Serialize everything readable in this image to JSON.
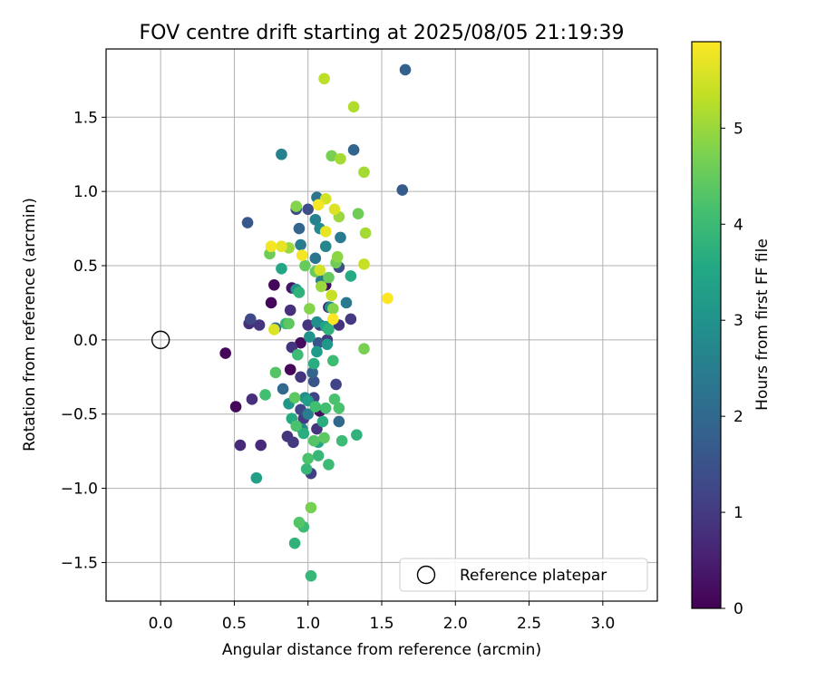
{
  "chart_data": {
    "type": "scatter",
    "title": "FOV centre drift starting at 2025/08/05 21:19:39",
    "xlabel": "Angular distance from reference (arcmin)",
    "ylabel": "Rotation from reference (arcmin)",
    "xlim": [
      -0.37,
      3.37
    ],
    "ylim": [
      -1.76,
      1.96
    ],
    "xticks": [
      0.0,
      0.5,
      1.0,
      1.5,
      2.0,
      2.5,
      3.0
    ],
    "xtick_labels": [
      "0.0",
      "0.5",
      "1.0",
      "1.5",
      "2.0",
      "2.5",
      "3.0"
    ],
    "yticks": [
      -1.5,
      -1.0,
      -0.5,
      0.0,
      0.5,
      1.0,
      1.5
    ],
    "ytick_labels": [
      "−1.5",
      "−1.0",
      "−0.5",
      "0.0",
      "0.5",
      "1.0",
      "1.5"
    ],
    "grid": true,
    "legend": {
      "placement": "lower-right",
      "entries": [
        "Reference platepar"
      ]
    },
    "reference": {
      "x": 0.0,
      "y": 0.0,
      "label": "Reference platepar"
    },
    "colorbar": {
      "label": "Hours from first FF file",
      "colormap": "viridis",
      "range": [
        0,
        5.9
      ],
      "ticks": [
        0,
        1,
        2,
        3,
        4,
        5
      ],
      "tick_labels": [
        "0",
        "1",
        "2",
        "3",
        "4",
        "5"
      ]
    },
    "points": [
      {
        "x": 0.44,
        "y": -0.09,
        "h": 0.1
      },
      {
        "x": 0.51,
        "y": -0.45,
        "h": 0.1
      },
      {
        "x": 0.75,
        "y": 0.25,
        "h": 0.1
      },
      {
        "x": 0.77,
        "y": 0.37,
        "h": 0.1
      },
      {
        "x": 0.88,
        "y": -0.2,
        "h": 0.1
      },
      {
        "x": 0.95,
        "y": -0.02,
        "h": 0.2
      },
      {
        "x": 1.08,
        "y": -0.48,
        "h": 0.2
      },
      {
        "x": 1.12,
        "y": 0.37,
        "h": 0.2
      },
      {
        "x": 0.89,
        "y": 0.35,
        "h": 0.3
      },
      {
        "x": 1.14,
        "y": 0.22,
        "h": 0.3
      },
      {
        "x": 0.54,
        "y": -0.71,
        "h": 0.7
      },
      {
        "x": 0.68,
        "y": -0.71,
        "h": 0.7
      },
      {
        "x": 0.62,
        "y": -0.4,
        "h": 0.8
      },
      {
        "x": 0.6,
        "y": 0.11,
        "h": 0.8
      },
      {
        "x": 0.67,
        "y": 0.1,
        "h": 0.9
      },
      {
        "x": 0.89,
        "y": -0.05,
        "h": 0.9
      },
      {
        "x": 0.86,
        "y": -0.65,
        "h": 0.9
      },
      {
        "x": 0.88,
        "y": 0.2,
        "h": 0.8
      },
      {
        "x": 0.95,
        "y": -0.25,
        "h": 0.9
      },
      {
        "x": 1.0,
        "y": 0.1,
        "h": 0.9
      },
      {
        "x": 1.06,
        "y": -0.6,
        "h": 0.9
      },
      {
        "x": 1.21,
        "y": 0.1,
        "h": 0.9
      },
      {
        "x": 1.29,
        "y": 0.14,
        "h": 1.0
      },
      {
        "x": 0.9,
        "y": -0.69,
        "h": 1.0
      },
      {
        "x": 0.97,
        "y": -0.53,
        "h": 1.0
      },
      {
        "x": 1.13,
        "y": 0.0,
        "h": 1.0
      },
      {
        "x": 1.08,
        "y": 0.1,
        "h": 1.1
      },
      {
        "x": 1.02,
        "y": -0.9,
        "h": 1.1
      },
      {
        "x": 1.19,
        "y": -0.3,
        "h": 1.2
      },
      {
        "x": 1.04,
        "y": -0.39,
        "h": 1.2
      },
      {
        "x": 0.95,
        "y": -0.47,
        "h": 1.2
      },
      {
        "x": 0.61,
        "y": 0.14,
        "h": 1.3
      },
      {
        "x": 0.92,
        "y": 0.88,
        "h": 1.3
      },
      {
        "x": 1.0,
        "y": 0.88,
        "h": 1.4
      },
      {
        "x": 1.21,
        "y": 0.49,
        "h": 1.4
      },
      {
        "x": 1.04,
        "y": -0.28,
        "h": 1.5
      },
      {
        "x": 1.07,
        "y": -0.02,
        "h": 1.5
      },
      {
        "x": 0.59,
        "y": 0.79,
        "h": 1.6
      },
      {
        "x": 1.64,
        "y": 1.01,
        "h": 1.7
      },
      {
        "x": 1.66,
        "y": 1.82,
        "h": 1.8
      },
      {
        "x": 1.31,
        "y": 1.28,
        "h": 1.9
      },
      {
        "x": 0.94,
        "y": 0.75,
        "h": 1.9
      },
      {
        "x": 1.03,
        "y": -0.22,
        "h": 1.9
      },
      {
        "x": 1.21,
        "y": -0.55,
        "h": 2.0
      },
      {
        "x": 0.83,
        "y": -0.33,
        "h": 2.0
      },
      {
        "x": 0.78,
        "y": 0.08,
        "h": 2.2
      },
      {
        "x": 1.06,
        "y": 0.96,
        "h": 2.3
      },
      {
        "x": 1.05,
        "y": 0.55,
        "h": 2.3
      },
      {
        "x": 1.22,
        "y": 0.69,
        "h": 2.4
      },
      {
        "x": 1.09,
        "y": 0.4,
        "h": 2.4
      },
      {
        "x": 1.26,
        "y": 0.25,
        "h": 2.4
      },
      {
        "x": 0.95,
        "y": 0.64,
        "h": 2.5
      },
      {
        "x": 1.0,
        "y": -0.5,
        "h": 2.5
      },
      {
        "x": 0.82,
        "y": 1.25,
        "h": 2.6
      },
      {
        "x": 1.05,
        "y": 0.81,
        "h": 2.6
      },
      {
        "x": 1.12,
        "y": 0.63,
        "h": 2.7
      },
      {
        "x": 0.96,
        "y": -0.6,
        "h": 2.7
      },
      {
        "x": 1.08,
        "y": 0.75,
        "h": 2.8
      },
      {
        "x": 1.15,
        "y": 0.22,
        "h": 2.8
      },
      {
        "x": 1.06,
        "y": 0.12,
        "h": 2.9
      },
      {
        "x": 0.98,
        "y": -0.39,
        "h": 2.9
      },
      {
        "x": 0.92,
        "y": 0.34,
        "h": 3.0
      },
      {
        "x": 1.01,
        "y": 0.02,
        "h": 3.0
      },
      {
        "x": 1.13,
        "y": -0.03,
        "h": 3.1
      },
      {
        "x": 0.87,
        "y": -0.43,
        "h": 3.1
      },
      {
        "x": 1.06,
        "y": -0.08,
        "h": 3.2
      },
      {
        "x": 0.65,
        "y": -0.93,
        "h": 3.3
      },
      {
        "x": 1.0,
        "y": -0.41,
        "h": 3.3
      },
      {
        "x": 1.12,
        "y": 0.09,
        "h": 3.4
      },
      {
        "x": 0.82,
        "y": 0.48,
        "h": 3.5
      },
      {
        "x": 1.07,
        "y": -0.69,
        "h": 3.5
      },
      {
        "x": 1.29,
        "y": 0.43,
        "h": 3.6
      },
      {
        "x": 0.89,
        "y": -0.53,
        "h": 3.6
      },
      {
        "x": 0.97,
        "y": -0.63,
        "h": 3.7
      },
      {
        "x": 1.04,
        "y": -0.16,
        "h": 3.7
      },
      {
        "x": 1.1,
        "y": -0.55,
        "h": 3.7
      },
      {
        "x": 0.94,
        "y": 0.32,
        "h": 3.8
      },
      {
        "x": 1.14,
        "y": 0.07,
        "h": 3.8
      },
      {
        "x": 1.33,
        "y": -0.64,
        "h": 3.8
      },
      {
        "x": 0.91,
        "y": -1.37,
        "h": 3.8
      },
      {
        "x": 0.99,
        "y": -0.87,
        "h": 3.9
      },
      {
        "x": 1.02,
        "y": -1.59,
        "h": 3.9
      },
      {
        "x": 0.85,
        "y": 0.11,
        "h": 3.9
      },
      {
        "x": 1.07,
        "y": -0.78,
        "h": 3.9
      },
      {
        "x": 1.14,
        "y": -0.84,
        "h": 4.0
      },
      {
        "x": 0.97,
        "y": -1.26,
        "h": 4.0
      },
      {
        "x": 1.23,
        "y": -0.68,
        "h": 4.0
      },
      {
        "x": 1.17,
        "y": -0.14,
        "h": 4.0
      },
      {
        "x": 0.93,
        "y": -0.1,
        "h": 4.0
      },
      {
        "x": 0.71,
        "y": -0.37,
        "h": 4.1
      },
      {
        "x": 1.05,
        "y": -0.45,
        "h": 4.1
      },
      {
        "x": 1.12,
        "y": -0.46,
        "h": 4.1
      },
      {
        "x": 1.21,
        "y": -0.46,
        "h": 4.2
      },
      {
        "x": 1.18,
        "y": -0.4,
        "h": 4.2
      },
      {
        "x": 0.92,
        "y": -0.58,
        "h": 4.2
      },
      {
        "x": 1.0,
        "y": -0.8,
        "h": 4.2
      },
      {
        "x": 0.78,
        "y": -0.22,
        "h": 4.3
      },
      {
        "x": 0.94,
        "y": -1.23,
        "h": 4.3
      },
      {
        "x": 1.04,
        "y": -0.68,
        "h": 4.3
      },
      {
        "x": 0.91,
        "y": -0.39,
        "h": 4.4
      },
      {
        "x": 1.11,
        "y": -0.66,
        "h": 4.4
      },
      {
        "x": 0.87,
        "y": 0.11,
        "h": 4.4
      },
      {
        "x": 0.98,
        "y": 0.5,
        "h": 4.5
      },
      {
        "x": 1.14,
        "y": 0.42,
        "h": 4.5
      },
      {
        "x": 1.05,
        "y": 0.46,
        "h": 4.5
      },
      {
        "x": 1.19,
        "y": 0.52,
        "h": 4.6
      },
      {
        "x": 0.74,
        "y": 0.58,
        "h": 4.6
      },
      {
        "x": 1.34,
        "y": 0.85,
        "h": 4.6
      },
      {
        "x": 1.16,
        "y": 1.24,
        "h": 4.7
      },
      {
        "x": 1.02,
        "y": -1.13,
        "h": 4.7
      },
      {
        "x": 1.38,
        "y": -0.06,
        "h": 4.7
      },
      {
        "x": 0.92,
        "y": 0.9,
        "h": 4.8
      },
      {
        "x": 1.01,
        "y": 0.21,
        "h": 4.8
      },
      {
        "x": 1.17,
        "y": 0.21,
        "h": 4.8
      },
      {
        "x": 1.2,
        "y": 0.56,
        "h": 4.9
      },
      {
        "x": 1.09,
        "y": 0.36,
        "h": 5.0
      },
      {
        "x": 1.21,
        "y": 0.83,
        "h": 5.0
      },
      {
        "x": 0.87,
        "y": 0.62,
        "h": 5.0
      },
      {
        "x": 1.22,
        "y": 1.22,
        "h": 5.1
      },
      {
        "x": 1.38,
        "y": 1.13,
        "h": 5.1
      },
      {
        "x": 1.39,
        "y": 0.72,
        "h": 5.1
      },
      {
        "x": 1.31,
        "y": 1.57,
        "h": 5.2
      },
      {
        "x": 1.11,
        "y": 1.76,
        "h": 5.3
      },
      {
        "x": 1.38,
        "y": 0.51,
        "h": 5.4
      },
      {
        "x": 1.16,
        "y": 0.3,
        "h": 5.4
      },
      {
        "x": 1.12,
        "y": 0.95,
        "h": 5.5
      },
      {
        "x": 1.08,
        "y": 0.47,
        "h": 5.5
      },
      {
        "x": 1.18,
        "y": 0.88,
        "h": 5.6
      },
      {
        "x": 0.77,
        "y": 0.07,
        "h": 5.6
      },
      {
        "x": 0.82,
        "y": 0.63,
        "h": 5.7
      },
      {
        "x": 1.12,
        "y": 0.73,
        "h": 5.7
      },
      {
        "x": 1.07,
        "y": 0.91,
        "h": 5.8
      },
      {
        "x": 0.75,
        "y": 0.63,
        "h": 5.8
      },
      {
        "x": 0.96,
        "y": 0.57,
        "h": 5.8
      },
      {
        "x": 1.54,
        "y": 0.28,
        "h": 5.9
      },
      {
        "x": 1.17,
        "y": 0.14,
        "h": 5.9
      }
    ]
  }
}
